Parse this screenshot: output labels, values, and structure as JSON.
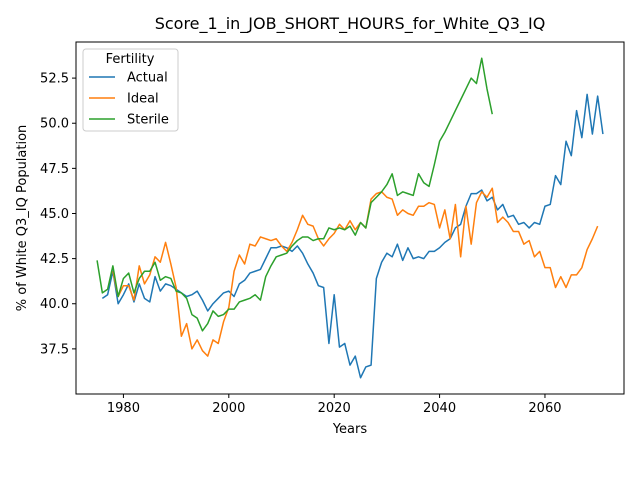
{
  "chart_data": {
    "type": "line",
    "title": "Score_1_in_JOB_SHORT_HOURS_for_White_Q3_IQ",
    "xlabel": "Years",
    "ylabel": "% of White Q3_IQ Population",
    "xlim": [
      1971,
      2075
    ],
    "ylim": [
      35.0,
      54.5
    ],
    "xticks": [
      1980,
      2000,
      2020,
      2040,
      2060
    ],
    "yticks": [
      37.5,
      40.0,
      42.5,
      45.0,
      47.5,
      50.0,
      52.5
    ],
    "ytick_labels": [
      "37.5",
      "40.0",
      "42.5",
      "45.0",
      "47.5",
      "50.0",
      "52.5"
    ],
    "grid": false,
    "legend": {
      "title": "Fertility",
      "position": "top-left"
    },
    "series": [
      {
        "name": "Actual",
        "color": "#1f77b4",
        "x_start": 1976,
        "values": [
          40.3,
          40.5,
          41.8,
          40.0,
          40.5,
          41.1,
          40.1,
          41.1,
          40.3,
          40.1,
          41.5,
          40.7,
          41.1,
          41.0,
          40.8,
          40.6,
          40.4,
          40.5,
          40.7,
          40.2,
          39.6,
          40.0,
          40.3,
          40.6,
          40.7,
          40.4,
          41.1,
          41.3,
          41.7,
          41.8,
          41.9,
          42.5,
          43.1,
          43.1,
          43.2,
          43.1,
          42.9,
          43.2,
          42.8,
          42.2,
          41.7,
          41.0,
          40.9,
          37.8,
          40.5,
          37.6,
          37.8,
          36.6,
          37.1,
          35.9,
          36.5,
          36.6,
          41.4,
          42.3,
          42.8,
          42.6,
          43.3,
          42.4,
          43.1,
          42.5,
          42.6,
          42.5,
          42.9,
          42.9,
          43.1,
          43.4,
          43.6,
          44.2,
          44.4,
          45.4,
          46.1,
          46.1,
          46.3,
          45.7,
          45.9,
          45.2,
          45.5,
          44.8,
          44.9,
          44.4,
          44.5,
          44.2,
          44.5,
          44.4,
          45.4,
          45.5,
          47.1,
          46.6,
          49.0,
          48.2,
          50.7,
          49.2,
          51.6,
          49.4,
          51.5,
          49.4
        ]
      },
      {
        "name": "Ideal",
        "color": "#ff7f0e",
        "x_start": 1978,
        "values": [
          41.8,
          40.4,
          41.0,
          41.0,
          40.2,
          42.1,
          41.1,
          41.6,
          42.6,
          42.3,
          43.4,
          42.2,
          40.9,
          38.2,
          38.9,
          37.5,
          38.0,
          37.4,
          37.1,
          38.0,
          37.8,
          39.0,
          39.8,
          41.8,
          42.7,
          42.2,
          43.3,
          43.2,
          43.7,
          43.6,
          43.5,
          43.6,
          43.2,
          42.9,
          43.4,
          44.1,
          44.9,
          44.4,
          44.3,
          43.6,
          43.2,
          43.6,
          43.9,
          44.4,
          44.1,
          44.6,
          44.1,
          44.5,
          44.2,
          45.8,
          46.1,
          46.2,
          45.9,
          45.8,
          44.9,
          45.2,
          45.0,
          44.9,
          45.4,
          45.4,
          45.6,
          45.5,
          44.2,
          45.2,
          43.6,
          45.5,
          42.6,
          45.4,
          43.3,
          45.6,
          46.2,
          45.9,
          46.4,
          44.5,
          44.8,
          44.5,
          44.0,
          44.0,
          43.3,
          43.5,
          42.6,
          42.9,
          42.0,
          42.0,
          40.9,
          41.5,
          40.9,
          41.6,
          41.6,
          42.0,
          43.0,
          43.6,
          44.3
        ]
      },
      {
        "name": "Sterile",
        "color": "#2ca02c",
        "x_start": 1975,
        "values": [
          42.4,
          40.6,
          40.8,
          42.1,
          40.4,
          41.4,
          41.7,
          40.6,
          41.4,
          41.8,
          41.8,
          42.3,
          41.3,
          41.5,
          41.4,
          40.7,
          40.6,
          40.3,
          39.4,
          39.2,
          38.5,
          38.9,
          39.6,
          39.3,
          39.4,
          39.7,
          39.7,
          40.1,
          40.2,
          40.3,
          40.5,
          40.2,
          41.5,
          42.1,
          42.6,
          42.7,
          42.8,
          43.2,
          43.5,
          43.7,
          43.7,
          43.5,
          43.6,
          43.6,
          44.2,
          44.1,
          44.2,
          44.1,
          44.3,
          43.8,
          44.5,
          44.2,
          45.6,
          45.9,
          46.2,
          46.6,
          47.2,
          46.0,
          46.2,
          46.1,
          46.0,
          47.2,
          46.7,
          46.5,
          47.7,
          49.0,
          49.5,
          50.1,
          50.7,
          51.3,
          51.9,
          52.5,
          52.2,
          53.6,
          51.9,
          50.5
        ]
      }
    ]
  }
}
